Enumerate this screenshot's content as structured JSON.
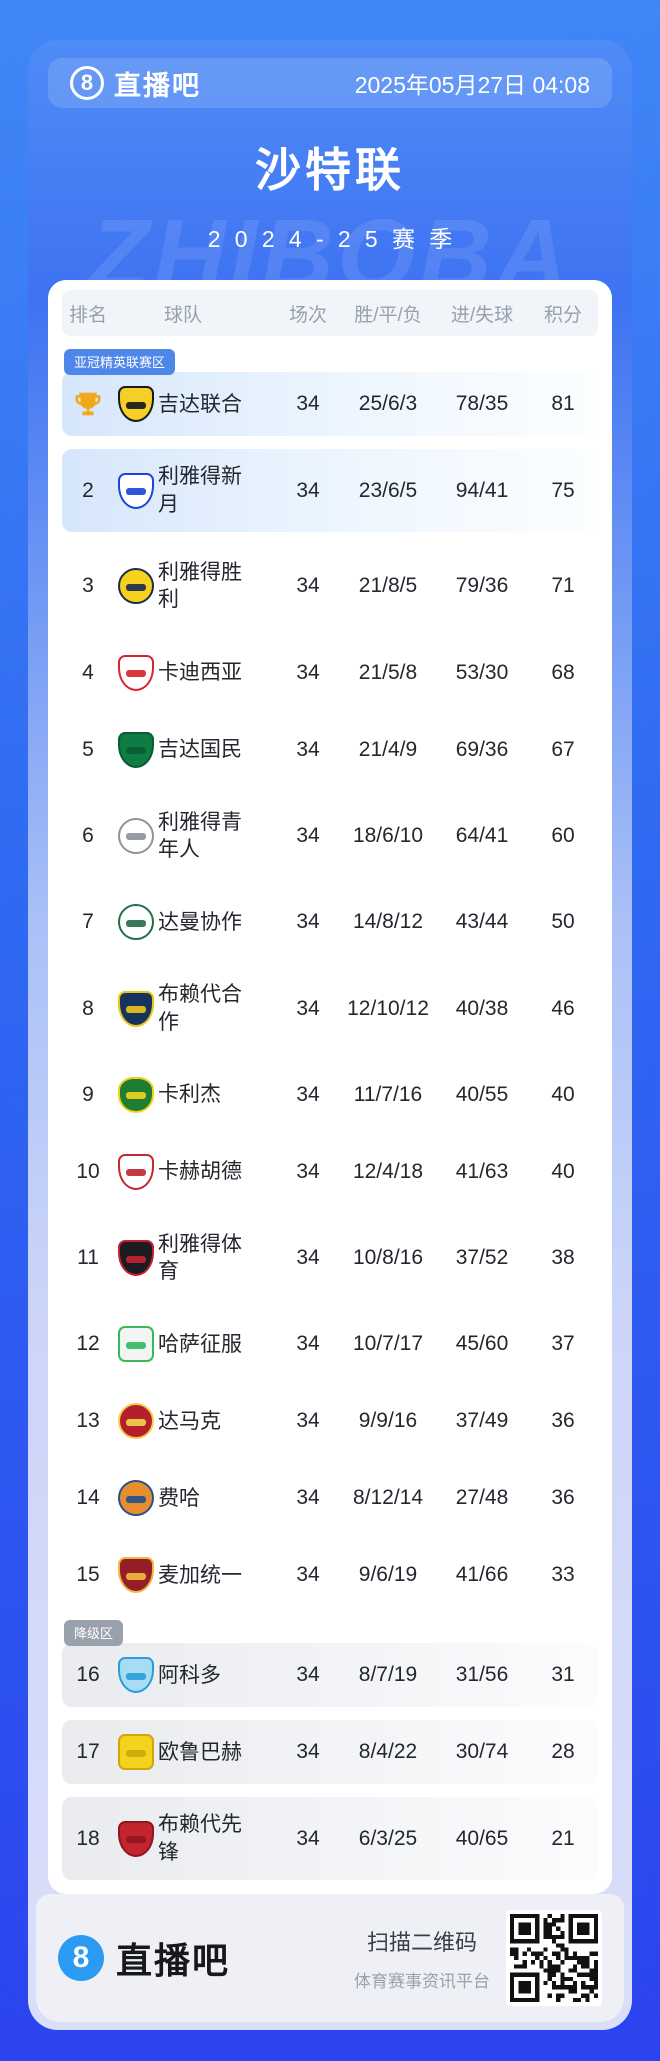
{
  "header": {
    "logo_text": "直播吧",
    "datetime": "2025年05月27日 04:08"
  },
  "title": "沙特联",
  "season": "2024-25赛季",
  "watermark": "ZHIBOBA",
  "table": {
    "columns": [
      "排名",
      "球队",
      "场次",
      "胜/平/负",
      "进/失球",
      "积分"
    ],
    "zone_labels": {
      "acl": "亚冠精英联赛区",
      "rel": "降级区"
    },
    "rows": [
      {
        "rank": "1",
        "champion": true,
        "team": "吉达联合",
        "played": "34",
        "wdl": "25/6/3",
        "goals": "78/35",
        "points": "81",
        "zone": "acl",
        "badge": "亚冠精英联赛区",
        "logo": {
          "name": "al-ittihad-crest",
          "shape": "shield",
          "c1": "#f6cf26",
          "c2": "#17181b"
        }
      },
      {
        "rank": "2",
        "champion": false,
        "team": "利雅得新月",
        "played": "34",
        "wdl": "23/6/5",
        "goals": "94/41",
        "points": "75",
        "zone": "acl",
        "badge": "",
        "logo": {
          "name": "al-hilal-crest",
          "shape": "shield",
          "c1": "#ffffff",
          "c2": "#1e46d6"
        }
      },
      {
        "rank": "3",
        "champion": false,
        "team": "利雅得胜利",
        "played": "34",
        "wdl": "21/8/5",
        "goals": "79/36",
        "points": "71",
        "zone": "",
        "badge": "",
        "logo": {
          "name": "al-nassr-crest",
          "shape": "circle",
          "c1": "#f6d21f",
          "c2": "#1c2b52"
        }
      },
      {
        "rank": "4",
        "champion": false,
        "team": "卡迪西亚",
        "played": "34",
        "wdl": "21/5/8",
        "goals": "53/30",
        "points": "68",
        "zone": "",
        "badge": "",
        "logo": {
          "name": "al-qadsiah-crest",
          "shape": "shield",
          "c1": "#ffffff",
          "c2": "#d6252e"
        }
      },
      {
        "rank": "5",
        "champion": false,
        "team": "吉达国民",
        "played": "34",
        "wdl": "21/4/9",
        "goals": "69/36",
        "points": "67",
        "zone": "",
        "badge": "",
        "logo": {
          "name": "al-ahli-crest",
          "shape": "shield",
          "c1": "#0f7c44",
          "c2": "#0a5c33"
        }
      },
      {
        "rank": "6",
        "champion": false,
        "team": "利雅得青年人",
        "played": "34",
        "wdl": "18/6/10",
        "goals": "64/41",
        "points": "60",
        "zone": "",
        "badge": "",
        "logo": {
          "name": "al-shabab-crest",
          "shape": "circle",
          "c1": "#ffffff",
          "c2": "#8d9499"
        }
      },
      {
        "rank": "7",
        "champion": false,
        "team": "达曼协作",
        "played": "34",
        "wdl": "14/8/12",
        "goals": "43/44",
        "points": "50",
        "zone": "",
        "badge": "",
        "logo": {
          "name": "al-ettifaq-crest",
          "shape": "circle",
          "c1": "#ffffff",
          "c2": "#246e46"
        }
      },
      {
        "rank": "8",
        "champion": false,
        "team": "布赖代合作",
        "played": "34",
        "wdl": "12/10/12",
        "goals": "40/38",
        "points": "46",
        "zone": "",
        "badge": "",
        "logo": {
          "name": "al-taawoun-crest",
          "shape": "shield",
          "c1": "#16325f",
          "c2": "#e9c418"
        }
      },
      {
        "rank": "9",
        "champion": false,
        "team": "卡利杰",
        "played": "34",
        "wdl": "11/7/16",
        "goals": "40/55",
        "points": "40",
        "zone": "",
        "badge": "",
        "logo": {
          "name": "al-khaleej-crest",
          "shape": "drop",
          "c1": "#1e7c33",
          "c2": "#f2d11c"
        }
      },
      {
        "rank": "10",
        "champion": false,
        "team": "卡赫胡德",
        "played": "34",
        "wdl": "12/4/18",
        "goals": "41/63",
        "points": "40",
        "zone": "",
        "badge": "",
        "logo": {
          "name": "al-okhdood-crest",
          "shape": "shield",
          "c1": "#ffffff",
          "c2": "#bf2b33"
        }
      },
      {
        "rank": "11",
        "champion": false,
        "team": "利雅得体育",
        "played": "34",
        "wdl": "10/8/16",
        "goals": "37/52",
        "points": "38",
        "zone": "",
        "badge": "",
        "logo": {
          "name": "al-riyadh-crest",
          "shape": "shield",
          "c1": "#1b1c22",
          "c2": "#c32030"
        }
      },
      {
        "rank": "12",
        "champion": false,
        "team": "哈萨征服",
        "played": "34",
        "wdl": "10/7/17",
        "goals": "45/60",
        "points": "37",
        "zone": "",
        "badge": "",
        "logo": {
          "name": "al-fateh-crest",
          "shape": "square",
          "c1": "#f2f5f4",
          "c2": "#37b95e"
        }
      },
      {
        "rank": "13",
        "champion": false,
        "team": "达马克",
        "played": "34",
        "wdl": "9/9/16",
        "goals": "37/49",
        "points": "36",
        "zone": "",
        "badge": "",
        "logo": {
          "name": "damac-crest",
          "shape": "circle",
          "c1": "#b31f2a",
          "c2": "#f3cf4a"
        }
      },
      {
        "rank": "14",
        "champion": false,
        "team": "费哈",
        "played": "34",
        "wdl": "8/12/14",
        "goals": "27/48",
        "points": "36",
        "zone": "",
        "badge": "",
        "logo": {
          "name": "al-feiha-crest",
          "shape": "circle",
          "c1": "#e78f2e",
          "c2": "#27508f"
        }
      },
      {
        "rank": "15",
        "champion": false,
        "team": "麦加统一",
        "played": "34",
        "wdl": "9/6/19",
        "goals": "41/66",
        "points": "33",
        "zone": "",
        "badge": "",
        "logo": {
          "name": "al-wehda-crest",
          "shape": "shield",
          "c1": "#951d28",
          "c2": "#f0b73c"
        }
      },
      {
        "rank": "16",
        "champion": false,
        "team": "阿科多",
        "played": "34",
        "wdl": "8/7/19",
        "goals": "31/56",
        "points": "31",
        "zone": "rel",
        "badge": "降级区",
        "logo": {
          "name": "al-akhdoud-crest",
          "shape": "shield",
          "c1": "#a8dcf4",
          "c2": "#2a9cd8"
        }
      },
      {
        "rank": "17",
        "champion": false,
        "team": "欧鲁巴赫",
        "played": "34",
        "wdl": "8/4/22",
        "goals": "30/74",
        "points": "28",
        "zone": "rel",
        "badge": "",
        "logo": {
          "name": "al-orobah-crest",
          "shape": "square",
          "c1": "#f3d31b",
          "c2": "#caa90a"
        }
      },
      {
        "rank": "18",
        "champion": false,
        "team": "布赖代先锋",
        "played": "34",
        "wdl": "6/3/25",
        "goals": "40/65",
        "points": "21",
        "zone": "rel",
        "badge": "",
        "logo": {
          "name": "al-raed-crest",
          "shape": "shield",
          "c1": "#c4242d",
          "c2": "#8e1620"
        }
      }
    ]
  },
  "footer": {
    "logo_text": "直播吧",
    "scan_text": "扫描二维码",
    "platform_text": "体育赛事资讯平台"
  }
}
